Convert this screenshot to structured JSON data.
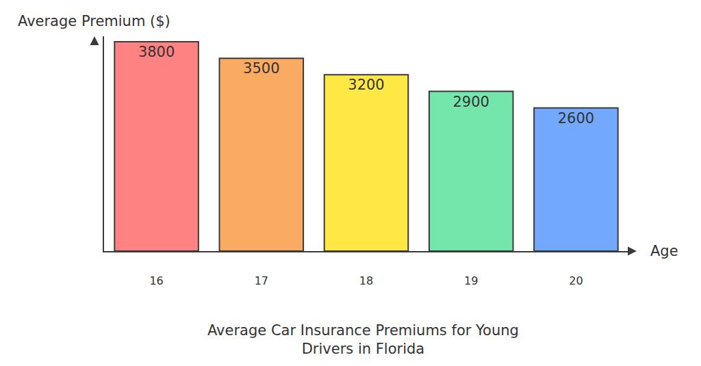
{
  "chart_data": {
    "type": "bar",
    "title": "Average Car Insurance Premiums for Young Drivers in Florida",
    "x_label": "Age",
    "y_label": "Average Premium ($)",
    "categories": [
      "16",
      "17",
      "18",
      "19",
      "20"
    ],
    "values": [
      3800,
      3500,
      3200,
      2900,
      2600
    ],
    "colors": [
      "#ff8282",
      "#fbaa62",
      "#ffe844",
      "#74e6ac",
      "#72a9ff"
    ],
    "ylim": [
      0,
      3900
    ],
    "tick_labels": "x",
    "data_labels": true,
    "grid": false
  }
}
